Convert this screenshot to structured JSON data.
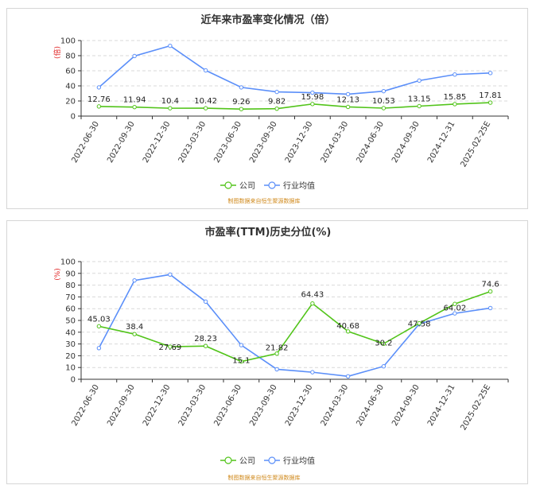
{
  "chart_data": [
    {
      "type": "line",
      "title": "近年来市盈率变化情况（倍）",
      "unit_label": "(倍)",
      "categories": [
        "2022-06-30",
        "2022-09-30",
        "2022-12-30",
        "2023-03-30",
        "2023-06-30",
        "2023-09-30",
        "2023-12-30",
        "2024-03-30",
        "2024-06-30",
        "2024-09-30",
        "2024-12-31",
        "2025-02-25E"
      ],
      "yticks": [
        0,
        20,
        40,
        60,
        80,
        100
      ],
      "ylim": [
        0,
        100
      ],
      "grid": true,
      "legend_position": "bottom",
      "series": [
        {
          "name": "公司",
          "color": "#52c41a",
          "show_labels": true,
          "labels": [
            "12.76",
            "11.94",
            "10.4",
            "10.42",
            "9.26",
            "9.82",
            "15.98",
            "12.13",
            "10.53",
            "13.15",
            "15.85",
            "17.81"
          ],
          "values": [
            12.76,
            11.94,
            10.4,
            10.42,
            9.26,
            9.82,
            15.98,
            12.13,
            10.53,
            13.15,
            15.85,
            17.81
          ]
        },
        {
          "name": "行业均值",
          "color": "#5b8ff9",
          "show_labels": false,
          "values": [
            38,
            79.5,
            93,
            60.5,
            38,
            32,
            31,
            29,
            33,
            47,
            55,
            57
          ]
        }
      ],
      "source": "制图数据来自恒生聚源数据库"
    },
    {
      "type": "line",
      "title": "市盈率(TTM)历史分位(%)",
      "unit_label": "(%)",
      "categories": [
        "2022-06-30",
        "2022-09-30",
        "2022-12-30",
        "2023-03-30",
        "2023-06-30",
        "2023-09-30",
        "2023-12-30",
        "2024-03-30",
        "2024-06-30",
        "2024-09-30",
        "2024-12-31",
        "2025-02-25E"
      ],
      "yticks": [
        0,
        10,
        20,
        30,
        40,
        50,
        60,
        70,
        80,
        90,
        100
      ],
      "ylim": [
        0,
        100
      ],
      "grid": true,
      "legend_position": "bottom",
      "series": [
        {
          "name": "公司",
          "color": "#52c41a",
          "show_labels": true,
          "labels": [
            "45.03",
            "38.4",
            "27.69",
            "28.23",
            "15.1",
            "21.82",
            "64.43",
            "40.68",
            "30.2",
            "47.58",
            "64.02",
            "74.6"
          ],
          "values": [
            45.03,
            38.4,
            27.69,
            28.23,
            15.1,
            21.82,
            64.43,
            40.68,
            30.2,
            47.58,
            64.02,
            74.6
          ]
        },
        {
          "name": "行业均值",
          "color": "#5b8ff9",
          "show_labels": false,
          "values": [
            26.5,
            84,
            89,
            66,
            29,
            8.5,
            6,
            2.5,
            11,
            47,
            56,
            60.5
          ]
        }
      ],
      "source": "制图数据来自恒生聚源数据库"
    }
  ]
}
